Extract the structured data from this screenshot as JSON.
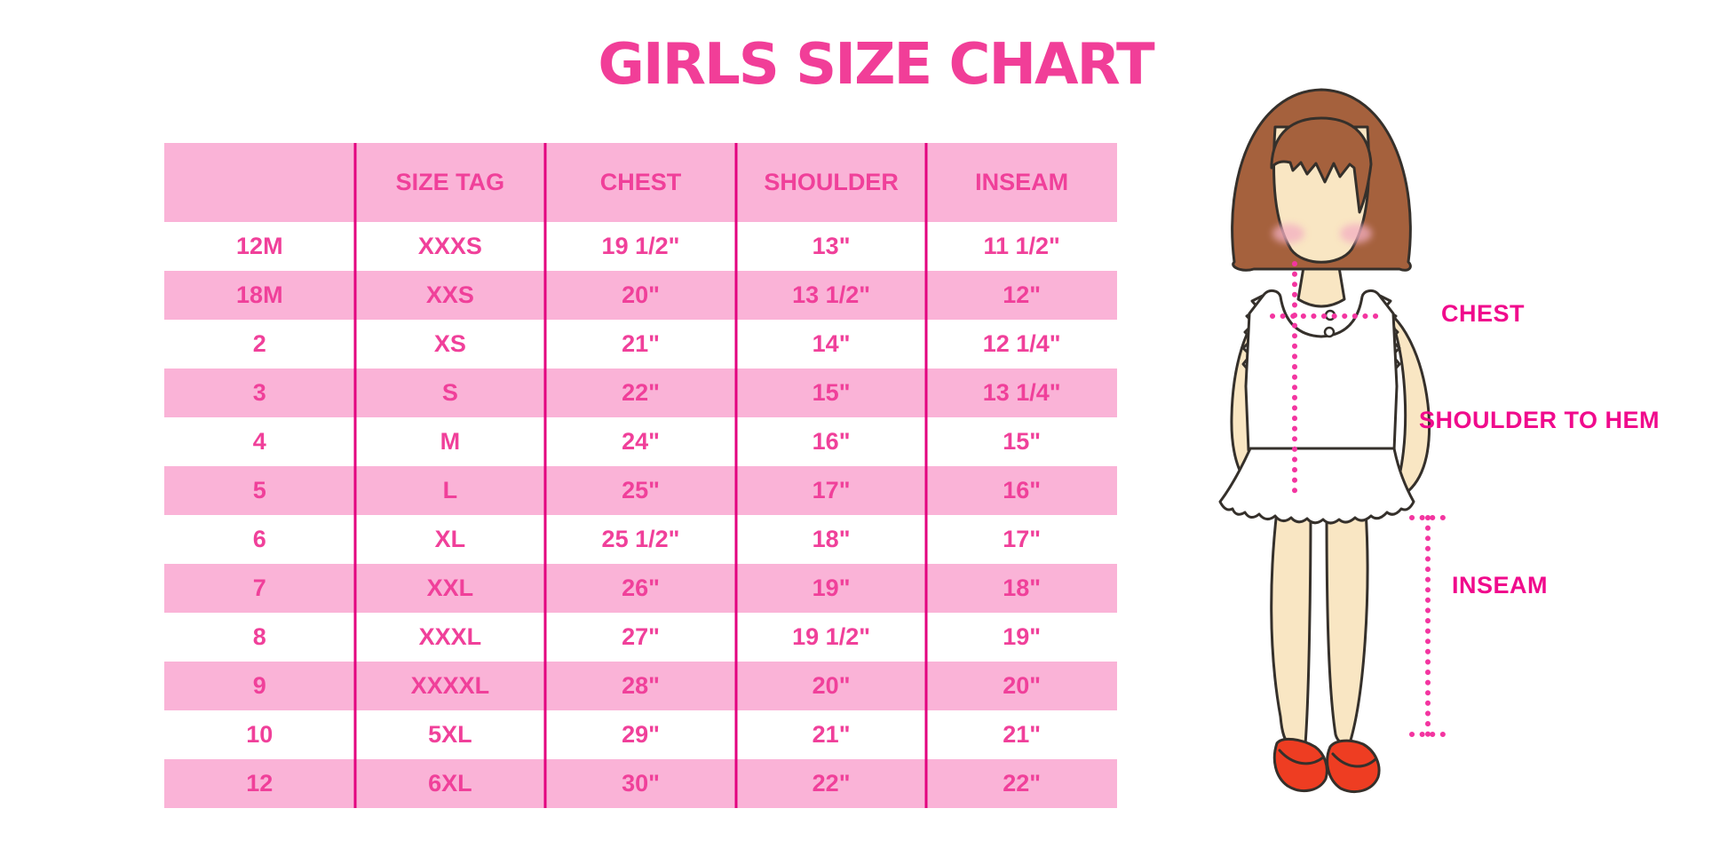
{
  "title": "GIRLS SIZE CHART",
  "chart_data": {
    "type": "table",
    "title": "GIRLS SIZE CHART",
    "columns": [
      "",
      "SIZE TAG",
      "CHEST",
      "SHOULDER HEM",
      "INSEAM"
    ],
    "rows": [
      [
        "12M",
        "XXXS",
        "19 1/2\"",
        "13\"",
        "11 1/2\""
      ],
      [
        "18M",
        "XXS",
        "20\"",
        "13 1/2\"",
        "12\""
      ],
      [
        "2",
        "XS",
        "21\"",
        "14\"",
        "12 1/4\""
      ],
      [
        "3",
        "S",
        "22\"",
        "15\"",
        "13 1/4\""
      ],
      [
        "4",
        "M",
        "24\"",
        "16\"",
        "15\""
      ],
      [
        "5",
        "L",
        "25\"",
        "17\"",
        "16\""
      ],
      [
        "6",
        "XL",
        "25 1/2\"",
        "18\"",
        "17\""
      ],
      [
        "7",
        "XXL",
        "26\"",
        "19\"",
        "18\""
      ],
      [
        "8",
        "XXXL",
        "27\"",
        "19 1/2\"",
        "19\""
      ],
      [
        "9",
        "XXXXL",
        "28\"",
        "20\"",
        "20\""
      ],
      [
        "10",
        "5XL",
        "29\"",
        "21\"",
        "21\""
      ],
      [
        "12",
        "6XL",
        "30\"",
        "22\"",
        "22\""
      ]
    ],
    "row_stripe_pattern": "alternating white/pink starting white"
  },
  "diagram": {
    "labels": {
      "chest": "CHEST",
      "shoulder_to_hem": "SHOULDER TO HEM",
      "inseam": "INSEAM"
    }
  },
  "colors": {
    "title_pink": "#F13E98",
    "row_pink": "#FAB3D7",
    "table_text": "#F0409A",
    "divider": "#E3007F",
    "label_magenta": "#F00A8C",
    "dotted_line": "#F335A0",
    "skin": "#F9E6C3",
    "hair": "#A5613D",
    "shoe_red": "#EE3D22"
  }
}
